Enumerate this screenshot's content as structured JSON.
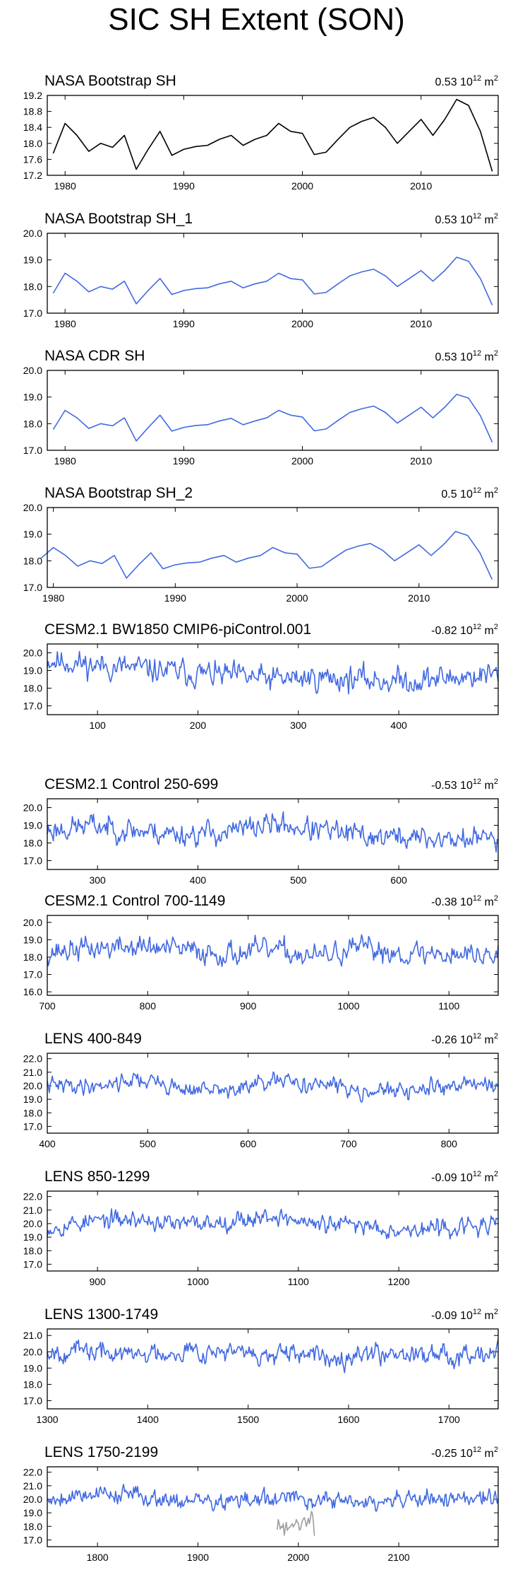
{
  "title": "SIC SH Extent (SON)",
  "colors": {
    "obs": "#000000",
    "model": "#4169e1",
    "obs_overlay": "#9e9e9e",
    "axis": "#000000"
  },
  "chart_data": [
    {
      "type": "line",
      "name": "NASA Bootstrap SH",
      "scale_value": "0.53",
      "scale_unit": "10",
      "scale_exp": "12",
      "scale_suffix": "m",
      "xlim": [
        1978.5,
        2016.5
      ],
      "ylim": [
        17.2,
        19.2
      ],
      "xticks": [
        1980,
        1990,
        2000,
        2010
      ],
      "xticklabels": [
        "1980",
        "1990",
        "2000",
        "2010"
      ],
      "yticks": [
        17.2,
        17.6,
        18.0,
        18.4,
        18.8,
        19.2
      ],
      "yticklabels": [
        "17.2",
        "17.6",
        "18.0",
        "18.4",
        "18.8",
        "19.2"
      ],
      "series": [
        {
          "name": "obs",
          "color": "#000000",
          "x_start": 1979,
          "x_step": 1,
          "values": [
            17.75,
            18.5,
            18.2,
            17.8,
            18.0,
            17.9,
            18.2,
            17.35,
            17.85,
            18.3,
            17.7,
            17.85,
            17.92,
            17.95,
            18.1,
            18.2,
            17.95,
            18.1,
            18.2,
            18.5,
            18.3,
            18.25,
            17.72,
            17.78,
            18.1,
            18.4,
            18.55,
            18.65,
            18.4,
            18.0,
            18.3,
            18.6,
            18.2,
            18.6,
            19.1,
            18.95,
            18.3,
            17.3
          ]
        }
      ]
    },
    {
      "type": "line",
      "name": "NASA Bootstrap SH_1",
      "scale_value": "0.53",
      "scale_unit": "10",
      "scale_exp": "12",
      "scale_suffix": "m",
      "xlim": [
        1978.5,
        2016.5
      ],
      "ylim": [
        17.0,
        20.0
      ],
      "xticks": [
        1980,
        1990,
        2000,
        2010
      ],
      "xticklabels": [
        "1980",
        "1990",
        "2000",
        "2010"
      ],
      "yticks": [
        17.0,
        18.0,
        19.0,
        20.0
      ],
      "yticklabels": [
        "17.0",
        "18.0",
        "19.0",
        "20.0"
      ],
      "series": [
        {
          "name": "model",
          "color": "#4169e1",
          "x_start": 1979,
          "x_step": 1,
          "values": [
            17.75,
            18.5,
            18.2,
            17.8,
            18.0,
            17.9,
            18.2,
            17.35,
            17.85,
            18.3,
            17.7,
            17.85,
            17.92,
            17.95,
            18.1,
            18.2,
            17.95,
            18.1,
            18.2,
            18.5,
            18.3,
            18.25,
            17.72,
            17.78,
            18.1,
            18.4,
            18.55,
            18.65,
            18.4,
            18.0,
            18.3,
            18.6,
            18.2,
            18.6,
            19.1,
            18.95,
            18.3,
            17.3
          ]
        }
      ]
    },
    {
      "type": "line",
      "name": "NASA CDR SH",
      "scale_value": "0.53",
      "scale_unit": "10",
      "scale_exp": "12",
      "scale_suffix": "m",
      "xlim": [
        1978.5,
        2016.5
      ],
      "ylim": [
        17.0,
        20.0
      ],
      "xticks": [
        1980,
        1990,
        2000,
        2010
      ],
      "xticklabels": [
        "1980",
        "1990",
        "2000",
        "2010"
      ],
      "yticks": [
        17.0,
        18.0,
        19.0,
        20.0
      ],
      "yticklabels": [
        "17.0",
        "18.0",
        "19.0",
        "20.0"
      ],
      "series": [
        {
          "name": "model",
          "color": "#4169e1",
          "x_start": 1979,
          "x_step": 1,
          "values": [
            17.78,
            18.5,
            18.22,
            17.82,
            18.0,
            17.92,
            18.22,
            17.35,
            17.85,
            18.32,
            17.72,
            17.86,
            17.93,
            17.96,
            18.1,
            18.2,
            17.96,
            18.1,
            18.22,
            18.5,
            18.32,
            18.25,
            17.73,
            17.8,
            18.12,
            18.42,
            18.56,
            18.66,
            18.42,
            18.02,
            18.32,
            18.62,
            18.22,
            18.62,
            19.1,
            18.96,
            18.3,
            17.3
          ]
        }
      ]
    },
    {
      "type": "line",
      "name": "NASA Bootstrap SH_2",
      "scale_value": "0.5",
      "scale_unit": "10",
      "scale_exp": "12",
      "scale_suffix": "m",
      "xlim": [
        1979.5,
        2016.5
      ],
      "ylim": [
        17.0,
        20.0
      ],
      "xticks": [
        1980,
        1990,
        2000,
        2010
      ],
      "xticklabels": [
        "1980",
        "1990",
        "2000",
        "2010"
      ],
      "yticks": [
        17.0,
        18.0,
        19.0,
        20.0
      ],
      "yticklabels": [
        "17.0",
        "18.0",
        "19.0",
        "20.0"
      ],
      "series": [
        {
          "name": "model",
          "color": "#4169e1",
          "x_start": 1979,
          "x_step": 1,
          "values": [
            18.1,
            18.5,
            18.2,
            17.8,
            18.0,
            17.9,
            18.2,
            17.35,
            17.85,
            18.3,
            17.7,
            17.85,
            17.92,
            17.95,
            18.1,
            18.2,
            17.95,
            18.1,
            18.2,
            18.5,
            18.3,
            18.25,
            17.72,
            17.78,
            18.1,
            18.4,
            18.55,
            18.65,
            18.4,
            18.0,
            18.3,
            18.6,
            18.2,
            18.6,
            19.1,
            18.95,
            18.3,
            17.3
          ]
        }
      ]
    },
    {
      "type": "line",
      "name": "CESM2.1 BW1850 CMIP6-piControl.001",
      "scale_value": "-0.82",
      "scale_unit": "10",
      "scale_exp": "12",
      "scale_suffix": "m",
      "xlim": [
        50,
        499
      ],
      "ylim": [
        16.5,
        20.5
      ],
      "xticks": [
        100,
        200,
        300,
        400
      ],
      "xticklabels": [
        "100",
        "200",
        "300",
        "400"
      ],
      "yticks": [
        17.0,
        18.0,
        19.0,
        20.0
      ],
      "yticklabels": [
        "17.0",
        "18.0",
        "19.0",
        "20.0"
      ],
      "series": [
        {
          "name": "model",
          "color": "#4169e1",
          "x_start": 50,
          "x_step": 1,
          "generated": {
            "n": 450,
            "base": [
              19.6,
              19.3,
              19.1,
              18.9,
              18.7,
              18.5,
              18.6,
              18.5,
              18.4,
              18.6,
              18.8
            ],
            "amp": 0.65,
            "seed": 11
          }
        }
      ]
    },
    {
      "type": "line",
      "name": "CESM2.1 Control 250-699",
      "scale_value": "-0.53",
      "scale_unit": "10",
      "scale_exp": "12",
      "scale_suffix": "m",
      "xlim": [
        250,
        699
      ],
      "ylim": [
        16.5,
        20.5
      ],
      "xticks": [
        300,
        400,
        500,
        600
      ],
      "xticklabels": [
        "300",
        "400",
        "500",
        "600"
      ],
      "yticks": [
        17.0,
        18.0,
        19.0,
        20.0
      ],
      "yticklabels": [
        "17.0",
        "18.0",
        "19.0",
        "20.0"
      ],
      "series": [
        {
          "name": "model",
          "color": "#4169e1",
          "x_start": 250,
          "x_step": 1,
          "generated": {
            "n": 450,
            "base": [
              18.7,
              19.0,
              18.7,
              18.5,
              18.6,
              19.1,
              18.7,
              18.4,
              18.3,
              18.2,
              18.3
            ],
            "amp": 0.6,
            "seed": 23
          }
        }
      ]
    },
    {
      "type": "line",
      "name": "CESM2.1 Control 700-1149",
      "scale_value": "-0.38",
      "scale_unit": "10",
      "scale_exp": "12",
      "scale_suffix": "m",
      "xlim": [
        700,
        1149
      ],
      "ylim": [
        15.8,
        20.4
      ],
      "xticks": [
        700,
        800,
        900,
        1000,
        1100
      ],
      "xticklabels": [
        "700",
        "800",
        "900",
        "1000",
        "1100"
      ],
      "yticks": [
        16.0,
        17.0,
        18.0,
        19.0,
        20.0
      ],
      "yticklabels": [
        "16.0",
        "17.0",
        "18.0",
        "19.0",
        "20.0"
      ],
      "series": [
        {
          "name": "model",
          "color": "#4169e1",
          "x_start": 700,
          "x_step": 1,
          "generated": {
            "n": 450,
            "base": [
              18.3,
              18.5,
              18.6,
              18.4,
              18.2,
              18.4,
              18.0,
              18.5,
              18.2,
              18.2,
              18.1
            ],
            "amp": 0.6,
            "seed": 37
          }
        }
      ]
    },
    {
      "type": "line",
      "name": "LENS 400-849",
      "scale_value": "-0.26",
      "scale_unit": "10",
      "scale_exp": "12",
      "scale_suffix": "m",
      "xlim": [
        400,
        849
      ],
      "ylim": [
        16.5,
        22.4
      ],
      "xticks": [
        400,
        500,
        600,
        700,
        800
      ],
      "xticklabels": [
        "400",
        "500",
        "600",
        "700",
        "800"
      ],
      "yticks": [
        17.0,
        18.0,
        19.0,
        20.0,
        21.0,
        22.0
      ],
      "yticklabels": [
        "17.0",
        "18.0",
        "19.0",
        "20.0",
        "21.0",
        "22.0"
      ],
      "series": [
        {
          "name": "model",
          "color": "#4169e1",
          "x_start": 400,
          "x_step": 1,
          "generated": {
            "n": 450,
            "base": [
              20.0,
              20.0,
              20.5,
              19.8,
              19.6,
              20.3,
              20.1,
              19.7,
              19.5,
              20.1,
              20.2
            ],
            "amp": 0.55,
            "seed": 41
          }
        }
      ]
    },
    {
      "type": "line",
      "name": "LENS 850-1299",
      "scale_value": "-0.09",
      "scale_unit": "10",
      "scale_exp": "12",
      "scale_suffix": "m",
      "xlim": [
        850,
        1299
      ],
      "ylim": [
        16.5,
        22.4
      ],
      "xticks": [
        900,
        1000,
        1100,
        1200
      ],
      "xticklabels": [
        "900",
        "1000",
        "1100",
        "1200"
      ],
      "yticks": [
        17.0,
        18.0,
        19.0,
        20.0,
        21.0,
        22.0
      ],
      "yticklabels": [
        "17.0",
        "18.0",
        "19.0",
        "20.0",
        "21.0",
        "22.0"
      ],
      "series": [
        {
          "name": "model",
          "color": "#4169e1",
          "x_start": 850,
          "x_step": 1,
          "generated": {
            "n": 450,
            "base": [
              19.7,
              20.2,
              20.3,
              19.9,
              20.2,
              20.6,
              19.9,
              19.9,
              19.5,
              19.7,
              19.9
            ],
            "amp": 0.6,
            "seed": 53
          }
        }
      ]
    },
    {
      "type": "line",
      "name": "LENS 1300-1749",
      "scale_value": "-0.09",
      "scale_unit": "10",
      "scale_exp": "12",
      "scale_suffix": "m",
      "xlim": [
        1300,
        1749
      ],
      "ylim": [
        16.5,
        21.4
      ],
      "xticks": [
        1300,
        1400,
        1500,
        1600,
        1700
      ],
      "xticklabels": [
        "1300",
        "1400",
        "1500",
        "1600",
        "1700"
      ],
      "yticks": [
        17.0,
        18.0,
        19.0,
        20.0,
        21.0
      ],
      "yticklabels": [
        "17.0",
        "18.0",
        "19.0",
        "20.0",
        "21.0"
      ],
      "series": [
        {
          "name": "model",
          "color": "#4169e1",
          "x_start": 1300,
          "x_step": 1,
          "generated": {
            "n": 450,
            "base": [
              20.1,
              20.0,
              19.8,
              20.1,
              20.0,
              19.7,
              19.7,
              19.9,
              20.0,
              19.8,
              20.2
            ],
            "amp": 0.55,
            "seed": 67
          }
        }
      ]
    },
    {
      "type": "line",
      "name": "LENS 1750-2199",
      "scale_value": "-0.25",
      "scale_unit": "10",
      "scale_exp": "12",
      "scale_suffix": "m",
      "xlim": [
        1750,
        2199
      ],
      "ylim": [
        16.5,
        22.4
      ],
      "xticks": [
        1800,
        1900,
        2000,
        2100
      ],
      "xticklabels": [
        "1800",
        "1900",
        "2000",
        "2100"
      ],
      "yticks": [
        17.0,
        18.0,
        19.0,
        20.0,
        21.0,
        22.0
      ],
      "yticklabels": [
        "17.0",
        "18.0",
        "19.0",
        "20.0",
        "21.0",
        "22.0"
      ],
      "series": [
        {
          "name": "model",
          "color": "#4169e1",
          "x_start": 1750,
          "x_step": 1,
          "generated": {
            "n": 450,
            "base": [
              20.0,
              20.5,
              20.3,
              19.9,
              19.8,
              20.0,
              20.0,
              19.7,
              19.9,
              20.1,
              20.0
            ],
            "amp": 0.6,
            "seed": 79
          }
        },
        {
          "name": "obs",
          "color": "#9e9e9e",
          "x_start": 1979,
          "x_step": 1,
          "values": [
            17.75,
            18.5,
            18.2,
            17.8,
            18.0,
            17.9,
            18.2,
            17.35,
            17.85,
            18.3,
            17.7,
            17.85,
            17.92,
            17.95,
            18.1,
            18.2,
            17.95,
            18.1,
            18.2,
            18.5,
            18.3,
            18.25,
            17.72,
            17.78,
            18.1,
            18.4,
            18.55,
            18.65,
            18.4,
            18.0,
            18.3,
            18.6,
            18.2,
            18.6,
            19.1,
            18.95,
            18.3,
            17.3
          ]
        }
      ]
    }
  ]
}
